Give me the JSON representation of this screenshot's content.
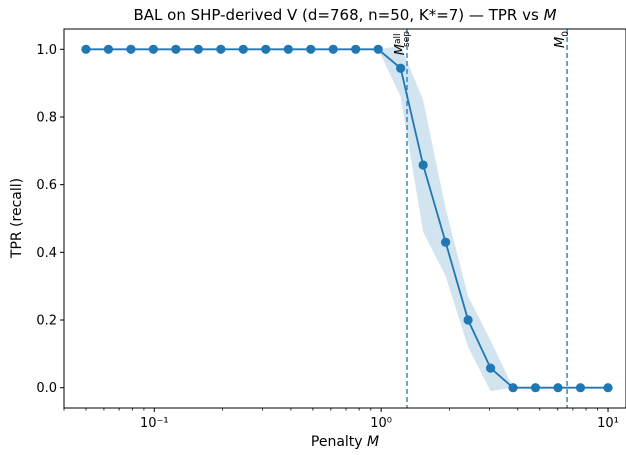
{
  "chart_data": {
    "type": "line",
    "title": "BAL on SHP-derived V (d=768, n=50, K*=7) — TPR vs M",
    "xlabel": "Penalty M",
    "ylabel": "TPR (recall)",
    "xscale": "log",
    "xlim": [
      0.04,
      12
    ],
    "ylim": [
      -0.06,
      1.06
    ],
    "xticks": [
      {
        "value": 0.1,
        "label": "10⁻¹"
      },
      {
        "value": 1,
        "label": "10⁰"
      },
      {
        "value": 10,
        "label": "10¹"
      }
    ],
    "yticks": [
      0.0,
      0.2,
      0.4,
      0.6,
      0.8,
      1.0
    ],
    "series": [
      {
        "color": "#1f77b4",
        "x": [
          0.05,
          0.0628,
          0.0789,
          0.0991,
          0.1245,
          0.1564,
          0.1965,
          0.2468,
          0.3101,
          0.3896,
          0.4894,
          0.6148,
          0.7723,
          0.9703,
          1.2189,
          1.5312,
          1.9235,
          2.4164,
          3.0356,
          3.8134,
          4.7905,
          6.0181,
          7.5602,
          10.0
        ],
        "y": [
          1.0,
          1.0,
          1.0,
          1.0,
          1.0,
          1.0,
          1.0,
          1.0,
          1.0,
          1.0,
          1.0,
          1.0,
          1.0,
          1.0,
          0.944,
          0.658,
          0.43,
          0.2,
          0.058,
          0.0,
          0.0,
          0.0,
          0.0,
          0.0
        ],
        "band_low": [
          1.0,
          1.0,
          1.0,
          1.0,
          1.0,
          1.0,
          1.0,
          1.0,
          1.0,
          1.0,
          1.0,
          1.0,
          1.0,
          1.0,
          0.86,
          0.46,
          0.33,
          0.12,
          -0.01,
          0.0,
          0.0,
          0.0,
          0.0,
          0.0
        ],
        "band_high": [
          1.0,
          1.0,
          1.0,
          1.0,
          1.0,
          1.0,
          1.0,
          1.0,
          1.0,
          1.0,
          1.0,
          1.0,
          1.0,
          1.0,
          1.01,
          0.85,
          0.53,
          0.27,
          0.14,
          0.0,
          0.0,
          0.0,
          0.0,
          0.0
        ]
      }
    ],
    "vlines": [
      {
        "x": 1.3,
        "label": "M",
        "sub": "sep",
        "sup": "all"
      },
      {
        "x": 6.6,
        "label": "M",
        "sub": "0",
        "sup": ""
      }
    ],
    "grid": false,
    "legend": "none"
  }
}
